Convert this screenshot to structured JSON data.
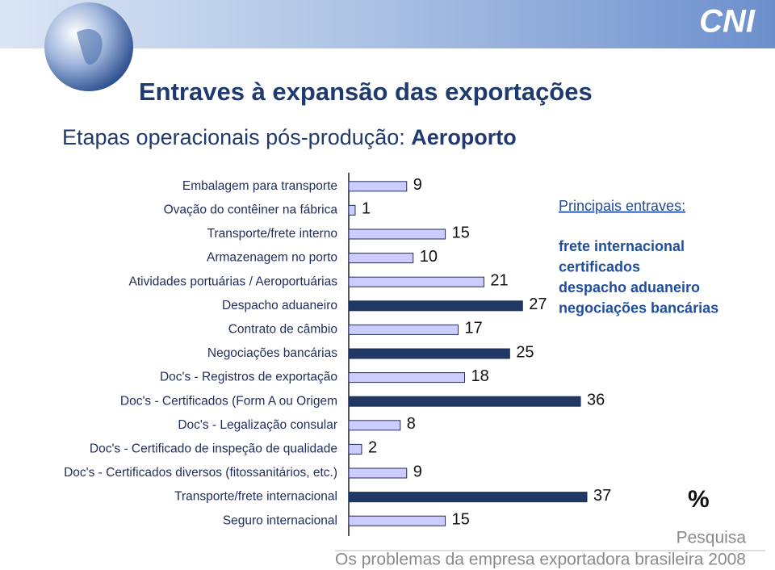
{
  "header": {
    "logo": "CNI"
  },
  "chart_data": {
    "type": "bar",
    "orientation": "horizontal",
    "title": "Entraves à expansão das exportações",
    "subtitle": "Etapas operacionais pós-produção:",
    "subtitle_highlight": "Aeroporto",
    "categories": [
      "Embalagem para transporte",
      "Ovação do contêiner na fábrica",
      "Transporte/frete interno",
      "Armazenagem no porto",
      "Atividades portuárias / Aeroportuárias",
      "Despacho aduaneiro",
      "Contrato de câmbio",
      "Negociações bancárias",
      "Doc's - Registros de exportação",
      "Doc's - Certificados (Form A ou Origem",
      "Doc's - Legalização consular",
      "Doc's - Certificado de inspeção de qualidade",
      "Doc's - Certificados diversos (fitossanitários, etc.)",
      "Transporte/frete internacional",
      "Seguro internacional"
    ],
    "values": [
      9,
      1,
      15,
      10,
      21,
      27,
      17,
      25,
      18,
      36,
      8,
      2,
      9,
      37,
      15
    ],
    "colors": [
      "#ccccff",
      "#ccccff",
      "#ccccff",
      "#ccccff",
      "#ccccff",
      "#1f3864",
      "#ccccff",
      "#1f3864",
      "#ccccff",
      "#1f3864",
      "#ccccff",
      "#ccccff",
      "#ccccff",
      "#1f3864",
      "#ccccff"
    ],
    "annotation": {
      "title": "Principais entraves:",
      "items": [
        "frete internacional",
        "certificados",
        "despacho aduaneiro",
        "negociações bancárias"
      ]
    },
    "unit": "%"
  },
  "footer": {
    "label": "Pesquisa",
    "text": "Os problemas da empresa exportadora brasileira 2008"
  }
}
